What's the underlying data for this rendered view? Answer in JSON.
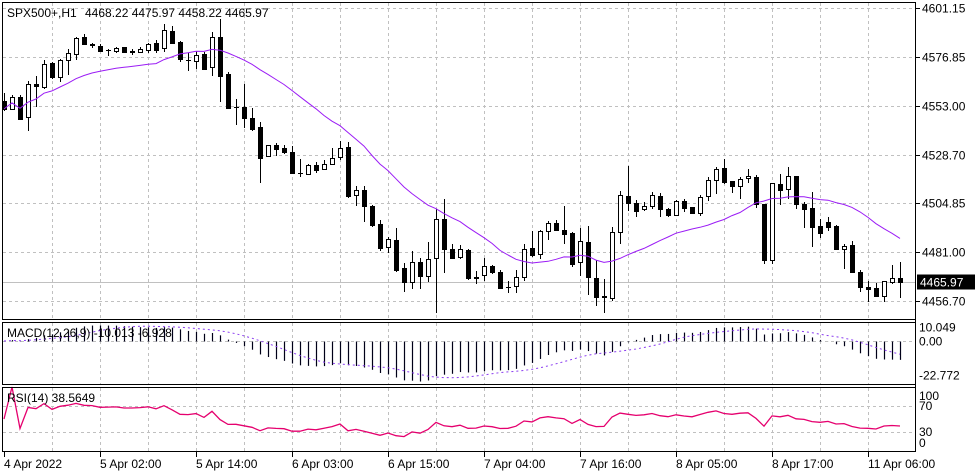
{
  "header": {
    "symbol": "SPX500+,H1",
    "ohlc_text": "4468.22 4475.97 4458.22 4465.97"
  },
  "indicators": {
    "macd_label": "MACD(12,26,9) -10.013 -6.928",
    "rsi_label": "RSI(14) 38.5649"
  },
  "colors": {
    "ma": "#9b1cf5",
    "macd_signal": "#8a3cf0",
    "macd_hist": "#000018",
    "rsi": "#e5006e",
    "grid": "#c0c0c0",
    "bid_line": "#c0c0c0",
    "price_tag_bg": "#000000",
    "price_tag_fg": "#ffffff"
  },
  "chart_data": {
    "type": "candlestick",
    "timeframe": "H1",
    "ylim": [
      4447.8,
      4605.1
    ],
    "grid": true,
    "price_ticks": [
      "4601.15",
      "4576.85",
      "4553.00",
      "4528.70",
      "4504.85",
      "4481.00",
      "4456.70"
    ],
    "current_price": "4465.97",
    "x_ticks": [
      "4 Apr 2022",
      "5 Apr 02:00",
      "5 Apr 14:00",
      "6 Apr 03:00",
      "6 Apr 15:00",
      "7 Apr 04:00",
      "7 Apr 16:00",
      "8 Apr 05:00",
      "8 Apr 17:00",
      "11 Apr 06:00"
    ],
    "moving_average": {
      "type": "SMA",
      "period": 20
    },
    "macd": {
      "fast": 12,
      "slow": 26,
      "signal": 9,
      "ylim": [
        -22.772,
        10.049
      ],
      "ticks": [
        "10.049",
        "0.00",
        "-22.772"
      ]
    },
    "rsi": {
      "period": 14,
      "ylim": [
        0,
        100
      ],
      "ticks": [
        "100",
        "70",
        "30",
        "0"
      ],
      "levels": [
        30,
        70
      ]
    },
    "candles_ohlc": [
      [
        4555.3,
        4559.3,
        4550.4,
        4551.4
      ],
      [
        4551.4,
        4558.3,
        4550.9,
        4557.3
      ],
      [
        4557.3,
        4558.3,
        4545.9,
        4546.4
      ],
      [
        4547.4,
        4565.2,
        4540.5,
        4563.7
      ],
      [
        4563.7,
        4567.6,
        4552.3,
        4562.7
      ],
      [
        4562.2,
        4575.5,
        4561.2,
        4573.5
      ],
      [
        4574.0,
        4574.5,
        4566.2,
        4567.1
      ],
      [
        4567.1,
        4576.0,
        4564.7,
        4575.5
      ],
      [
        4575.5,
        4580.9,
        4568.1,
        4579.0
      ],
      [
        4578.5,
        4586.9,
        4575.5,
        4586.4
      ],
      [
        4586.9,
        4588.3,
        4582.9,
        4583.4
      ],
      [
        4583.4,
        4583.9,
        4581.4,
        4582.9
      ],
      [
        4582.4,
        4583.4,
        4580.0,
        4580.0
      ],
      [
        4580.5,
        4580.9,
        4577.5,
        4580.5
      ],
      [
        4580.0,
        4581.9,
        4579.0,
        4581.4
      ],
      [
        4581.9,
        4581.9,
        4579.5,
        4579.5
      ],
      [
        4580.0,
        4580.9,
        4578.0,
        4579.5
      ],
      [
        4579.5,
        4581.9,
        4579.0,
        4580.9
      ],
      [
        4580.5,
        4583.9,
        4579.0,
        4583.4
      ],
      [
        4583.9,
        4585.4,
        4579.0,
        4580.5
      ],
      [
        4581.4,
        4593.3,
        4579.5,
        4590.3
      ],
      [
        4589.8,
        4592.3,
        4583.4,
        4583.9
      ],
      [
        4584.4,
        4584.9,
        4574.5,
        4576.0
      ],
      [
        4575.5,
        4579.0,
        4570.1,
        4575.5
      ],
      [
        4575.0,
        4580.0,
        4571.1,
        4578.0
      ],
      [
        4578.5,
        4579.5,
        4570.6,
        4571.1
      ],
      [
        4572.1,
        4589.3,
        4567.6,
        4586.9
      ],
      [
        4586.9,
        4595.7,
        4554.8,
        4567.6
      ],
      [
        4568.6,
        4569.6,
        4551.9,
        4551.9
      ],
      [
        4552.3,
        4556.3,
        4543.5,
        4552.3
      ],
      [
        4552.3,
        4563.7,
        4542.0,
        4546.9
      ],
      [
        4546.9,
        4551.9,
        4540.5,
        4541.5
      ],
      [
        4542.5,
        4545.0,
        4514.9,
        4527.2
      ],
      [
        4528.2,
        4533.6,
        4528.2,
        4533.6
      ],
      [
        4533.6,
        4534.6,
        4528.2,
        4531.6
      ],
      [
        4532.1,
        4533.6,
        4529.2,
        4530.2
      ],
      [
        4530.2,
        4533.1,
        4519.8,
        4519.8
      ],
      [
        4519.8,
        4526.7,
        4517.8,
        4519.8
      ],
      [
        4519.3,
        4524.2,
        4518.8,
        4523.8
      ],
      [
        4523.8,
        4525.2,
        4519.8,
        4521.3
      ],
      [
        4521.8,
        4526.2,
        4521.8,
        4524.2
      ],
      [
        4524.2,
        4532.1,
        4524.2,
        4527.2
      ],
      [
        4527.7,
        4535.6,
        4526.2,
        4532.1
      ],
      [
        4532.6,
        4535.1,
        4507.5,
        4508.5
      ],
      [
        4509.0,
        4513.4,
        4503.5,
        4511.4
      ],
      [
        4511.4,
        4513.4,
        4495.6,
        4503.5
      ],
      [
        4503.5,
        4504.0,
        4493.2,
        4494.2
      ],
      [
        4494.7,
        4496.6,
        4481.4,
        4482.8
      ],
      [
        4483.3,
        4488.3,
        4480.4,
        4487.3
      ],
      [
        4486.8,
        4492.7,
        4471.0,
        4472.0
      ],
      [
        4473.0,
        4475.4,
        4461.1,
        4466.1
      ],
      [
        4466.1,
        4481.4,
        4462.6,
        4475.9
      ],
      [
        4475.9,
        4477.9,
        4462.6,
        4469.0
      ],
      [
        4469.0,
        4485.8,
        4466.1,
        4477.4
      ],
      [
        4477.9,
        4502.1,
        4450.8,
        4497.1
      ],
      [
        4497.1,
        4507.0,
        4470.5,
        4482.3
      ],
      [
        4482.3,
        4484.8,
        4477.4,
        4477.9
      ],
      [
        4478.4,
        4484.3,
        4477.4,
        4482.3
      ],
      [
        4481.9,
        4482.3,
        4467.1,
        4468.0
      ],
      [
        4468.0,
        4471.5,
        4465.1,
        4468.5
      ],
      [
        4469.5,
        4477.9,
        4466.6,
        4474.0
      ],
      [
        4474.0,
        4474.5,
        4470.0,
        4471.0
      ],
      [
        4471.0,
        4472.0,
        4463.1,
        4463.1
      ],
      [
        4463.6,
        4466.6,
        4460.6,
        4463.6
      ],
      [
        4464.1,
        4472.0,
        4460.6,
        4468.5
      ],
      [
        4468.5,
        4484.8,
        4466.6,
        4482.3
      ],
      [
        4482.8,
        4491.2,
        4478.4,
        4479.4
      ],
      [
        4479.9,
        4491.7,
        4477.4,
        4491.2
      ],
      [
        4491.2,
        4496.1,
        4486.8,
        4495.2
      ],
      [
        4495.2,
        4496.6,
        4491.2,
        4491.7
      ],
      [
        4491.7,
        4503.5,
        4484.8,
        4489.7
      ],
      [
        4490.2,
        4490.7,
        4473.5,
        4474.9
      ],
      [
        4475.9,
        4492.7,
        4469.0,
        4486.3
      ],
      [
        4485.8,
        4493.7,
        4459.7,
        4468.5
      ],
      [
        4468.0,
        4476.9,
        4454.3,
        4458.7
      ],
      [
        4458.7,
        4467.6,
        4450.8,
        4459.2
      ],
      [
        4458.2,
        4493.2,
        4456.7,
        4490.7
      ],
      [
        4490.7,
        4510.9,
        4484.8,
        4509.0
      ],
      [
        4508.5,
        4523.3,
        4501.1,
        4505.0
      ],
      [
        4505.0,
        4506.5,
        4498.1,
        4501.1
      ],
      [
        4502.1,
        4505.5,
        4501.1,
        4503.5
      ],
      [
        4503.5,
        4510.4,
        4502.1,
        4509.0
      ],
      [
        4508.5,
        4510.0,
        4498.1,
        4502.1
      ],
      [
        4502.1,
        4502.6,
        4498.1,
        4499.1
      ],
      [
        4499.1,
        4506.5,
        4498.6,
        4506.0
      ],
      [
        4506.0,
        4507.0,
        4500.6,
        4502.6
      ],
      [
        4503.1,
        4503.1,
        4500.1,
        4500.1
      ],
      [
        4500.1,
        4509.0,
        4498.6,
        4508.0
      ],
      [
        4508.5,
        4517.8,
        4506.0,
        4516.4
      ],
      [
        4516.4,
        4522.8,
        4509.5,
        4521.8
      ],
      [
        4522.3,
        4526.7,
        4514.4,
        4515.4
      ],
      [
        4515.9,
        4515.9,
        4510.0,
        4513.4
      ],
      [
        4513.4,
        4517.8,
        4507.0,
        4516.9
      ],
      [
        4517.3,
        4521.8,
        4514.9,
        4518.3
      ],
      [
        4517.8,
        4518.8,
        4502.6,
        4504.5
      ],
      [
        4504.5,
        4504.5,
        4474.9,
        4476.9
      ],
      [
        4476.9,
        4514.9,
        4474.9,
        4514.9
      ],
      [
        4514.4,
        4519.3,
        4504.0,
        4511.4
      ],
      [
        4511.9,
        4522.8,
        4507.0,
        4518.3
      ],
      [
        4518.3,
        4518.3,
        4502.1,
        4504.5
      ],
      [
        4504.5,
        4505.5,
        4492.7,
        4502.1
      ],
      [
        4502.6,
        4510.4,
        4483.3,
        4493.2
      ],
      [
        4493.7,
        4497.1,
        4487.8,
        4490.2
      ],
      [
        4495.6,
        4498.1,
        4491.2,
        4493.2
      ],
      [
        4493.7,
        4494.2,
        4482.3,
        4482.3
      ],
      [
        4482.3,
        4484.8,
        4472.5,
        4483.8
      ],
      [
        4484.3,
        4486.3,
        4470.5,
        4471.0
      ],
      [
        4471.0,
        4472.0,
        4461.1,
        4463.6
      ],
      [
        4463.6,
        4466.6,
        4456.2,
        4462.6
      ],
      [
        4463.1,
        4465.6,
        4459.2,
        4459.2
      ],
      [
        4459.2,
        4466.6,
        4456.2,
        4466.6
      ],
      [
        4466.1,
        4474.5,
        4465.1,
        4468.0
      ],
      [
        4468.22,
        4475.97,
        4458.22,
        4465.97
      ]
    ]
  }
}
